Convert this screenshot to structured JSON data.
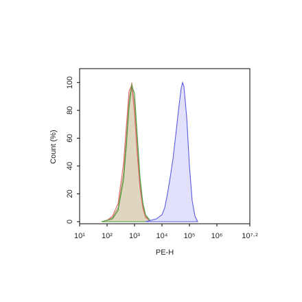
{
  "chart_data": {
    "type": "histogram-overlay",
    "xlabel": "PE-H",
    "ylabel": "Count (%)",
    "xscale": "log",
    "xlim": [
      10,
      15848932
    ],
    "ylim": [
      -1.5,
      110
    ],
    "xticks": [
      {
        "value": 10,
        "label": "10¹"
      },
      {
        "value": 100,
        "label": "10²"
      },
      {
        "value": 1000,
        "label": "10³"
      },
      {
        "value": 10000,
        "label": "10⁴"
      },
      {
        "value": 100000,
        "label": "10⁵"
      },
      {
        "value": 1000000,
        "label": "10⁶"
      },
      {
        "value": 15848932,
        "label": "10⁷·²"
      }
    ],
    "yticks": [
      0,
      20,
      40,
      60,
      80,
      100
    ],
    "series": [
      {
        "color": "#a8956a",
        "fill": "#d8cfb3",
        "x": [
          63,
          100,
          158,
          251,
          398,
          501,
          631,
          794,
          1000,
          1259,
          1585,
          1995,
          2512,
          3981
        ],
        "values": [
          0,
          1,
          3,
          10,
          35,
          60,
          88,
          100,
          85,
          55,
          28,
          12,
          4,
          0
        ]
      },
      {
        "color": "#e06a6a",
        "fill": "none",
        "x": [
          63,
          100,
          158,
          251,
          398,
          501,
          631,
          794,
          1000,
          1259,
          1585,
          1995,
          2512,
          3981
        ],
        "values": [
          0,
          1,
          4,
          13,
          42,
          68,
          94,
          98,
          78,
          48,
          24,
          10,
          3,
          0
        ]
      },
      {
        "color": "#4b9c3c",
        "fill": "none",
        "x": [
          63,
          100,
          158,
          251,
          398,
          501,
          631,
          794,
          1000,
          1259,
          1585,
          1995,
          2512,
          3981
        ],
        "values": [
          0,
          1,
          2,
          8,
          30,
          54,
          82,
          98,
          92,
          62,
          32,
          14,
          5,
          0
        ]
      },
      {
        "color": "#5a5ae0",
        "fill": "#dcdcfa",
        "x": [
          2512,
          3981,
          6310,
          10000,
          12589,
          15849,
          19953,
          25119,
          31623,
          39811,
          50119,
          56234,
          63096,
          79433,
          100000,
          125893,
          158489,
          199526
        ],
        "values": [
          0,
          1,
          2,
          5,
          10,
          20,
          32,
          45,
          62,
          80,
          96,
          100,
          97,
          75,
          40,
          15,
          4,
          0
        ]
      }
    ]
  }
}
